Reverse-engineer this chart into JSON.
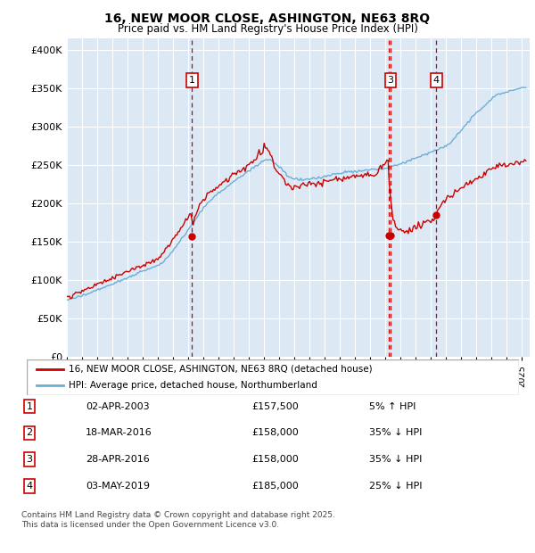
{
  "title": "16, NEW MOOR CLOSE, ASHINGTON, NE63 8RQ",
  "subtitle": "Price paid vs. HM Land Registry's House Price Index (HPI)",
  "ylabel_ticks": [
    "£0",
    "£50K",
    "£100K",
    "£150K",
    "£200K",
    "£250K",
    "£300K",
    "£350K",
    "£400K"
  ],
  "ytick_values": [
    0,
    50000,
    100000,
    150000,
    200000,
    250000,
    300000,
    350000,
    400000
  ],
  "ylim": [
    0,
    415000
  ],
  "xlim_start": 1995.0,
  "xlim_end": 2025.5,
  "background_color": "#dce9f5",
  "grid_color": "#ffffff",
  "red_line_color": "#cc0000",
  "blue_line_color": "#6baed6",
  "dashed_line_color": "#cc0000",
  "legend_label_red": "16, NEW MOOR CLOSE, ASHINGTON, NE63 8RQ (detached house)",
  "legend_label_blue": "HPI: Average price, detached house, Northumberland",
  "footer": "Contains HM Land Registry data © Crown copyright and database right 2025.\nThis data is licensed under the Open Government Licence v3.0.",
  "transactions": [
    {
      "id": 1,
      "date": "02-APR-2003",
      "price": "£157,500",
      "relation": "5% ↑ HPI",
      "x_year": 2003.25,
      "y_val": 157500
    },
    {
      "id": 2,
      "date": "18-MAR-2016",
      "price": "£158,000",
      "relation": "35% ↓ HPI",
      "x_year": 2016.21,
      "y_val": 158000
    },
    {
      "id": 3,
      "date": "28-APR-2016",
      "price": "£158,000",
      "relation": "35% ↓ HPI",
      "x_year": 2016.33,
      "y_val": 158000
    },
    {
      "id": 4,
      "date": "03-MAY-2019",
      "price": "£185,000",
      "relation": "25% ↓ HPI",
      "x_year": 2019.34,
      "y_val": 185000
    }
  ]
}
